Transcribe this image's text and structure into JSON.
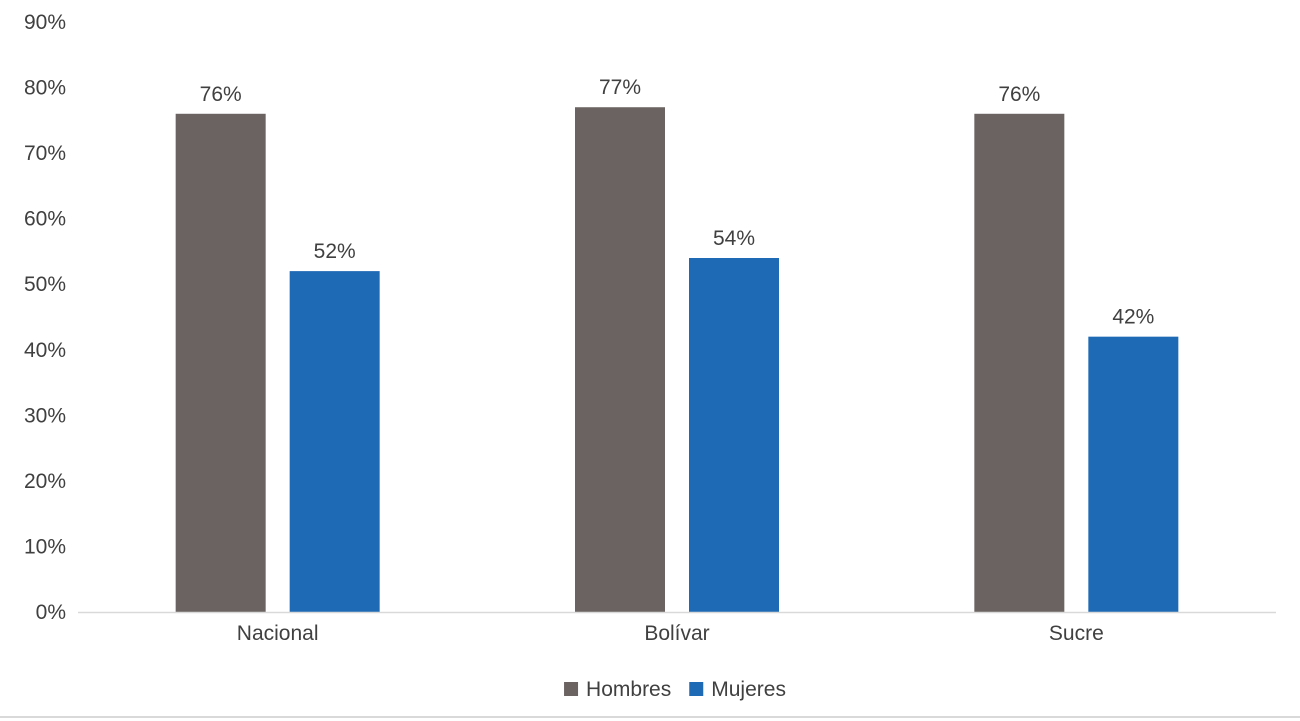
{
  "chart_data": {
    "type": "bar",
    "title": "",
    "xlabel": "",
    "ylabel": "",
    "categories": [
      "Nacional",
      "Bolívar",
      "Sucre"
    ],
    "series": [
      {
        "name": "Hombres",
        "color": "#6b6361",
        "values": [
          76,
          77,
          76
        ],
        "labels": [
          "76%",
          "77%",
          "76%"
        ]
      },
      {
        "name": "Mujeres",
        "color": "#1f6ab5",
        "values": [
          52,
          54,
          42
        ],
        "labels": [
          "52%",
          "54%",
          "42%"
        ]
      }
    ],
    "ylim": [
      0,
      90
    ],
    "yticks": [
      0,
      10,
      20,
      30,
      40,
      50,
      60,
      70,
      80,
      90
    ],
    "ytick_labels": [
      "0%",
      "10%",
      "20%",
      "30%",
      "40%",
      "50%",
      "60%",
      "70%",
      "80%",
      "90%"
    ],
    "grid": false,
    "legend_position": "bottom-center",
    "axis_color": "#d9d9d9"
  }
}
